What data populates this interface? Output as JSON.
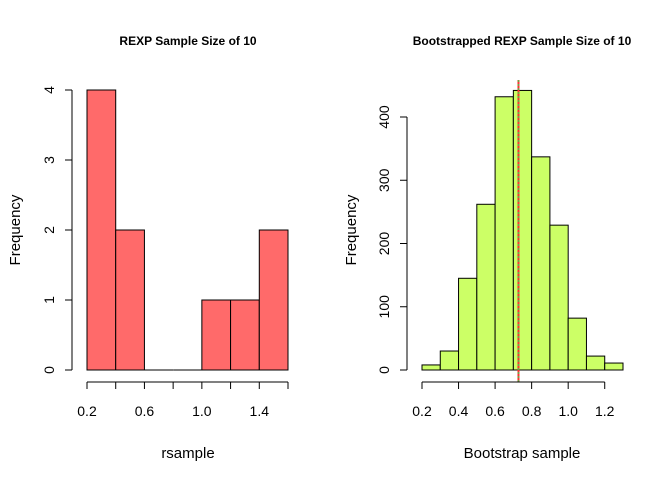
{
  "chart_data": [
    {
      "type": "bar",
      "title": "REXP Sample Size of 10",
      "xlabel": "rsample",
      "ylabel": "Frequency",
      "bin_edges": [
        0.2,
        0.4,
        0.6,
        0.8,
        1.0,
        1.2,
        1.4,
        1.6
      ],
      "values": [
        4,
        2,
        0,
        0,
        1,
        1,
        2
      ],
      "xlim": [
        0.2,
        1.6
      ],
      "ylim": [
        0,
        4
      ],
      "x_ticks": [
        0.2,
        0.4,
        0.6,
        0.8,
        1.0,
        1.2,
        1.4,
        1.6
      ],
      "x_tick_labels": [
        "0.2",
        "",
        "0.6",
        "",
        "1.0",
        "",
        "1.4",
        ""
      ],
      "y_ticks": [
        0,
        1,
        2,
        3,
        4
      ],
      "y_tick_labels": [
        "0",
        "1",
        "2",
        "3",
        "4"
      ],
      "bar_color": "#ff6a6a",
      "grid": false
    },
    {
      "type": "bar",
      "title": "Bootstrapped REXP Sample Size of 10",
      "xlabel": "Bootstrap sample",
      "ylabel": "Frequency",
      "bin_edges": [
        0.2,
        0.3,
        0.4,
        0.5,
        0.6,
        0.7,
        0.8,
        0.9,
        1.0,
        1.1,
        1.2,
        1.3
      ],
      "values": [
        8,
        30,
        145,
        262,
        432,
        442,
        337,
        229,
        82,
        22,
        11
      ],
      "xlim": [
        0.2,
        1.3
      ],
      "ylim": [
        0,
        460
      ],
      "x_ticks": [
        0.2,
        0.4,
        0.6,
        0.8,
        1.0,
        1.2
      ],
      "x_tick_labels": [
        "0.2",
        "0.4",
        "0.6",
        "0.8",
        "1.0",
        "1.2"
      ],
      "y_ticks": [
        0,
        100,
        200,
        300,
        400
      ],
      "y_tick_labels": [
        "0",
        "100",
        "200",
        "300",
        "400"
      ],
      "bar_color": "#ccff66",
      "grid": false,
      "vlines": [
        {
          "x": 0.728,
          "color": "#ff3030",
          "style": "solid"
        },
        {
          "x": 0.728,
          "color": "#66aa44",
          "style": "dotted"
        }
      ]
    }
  ]
}
